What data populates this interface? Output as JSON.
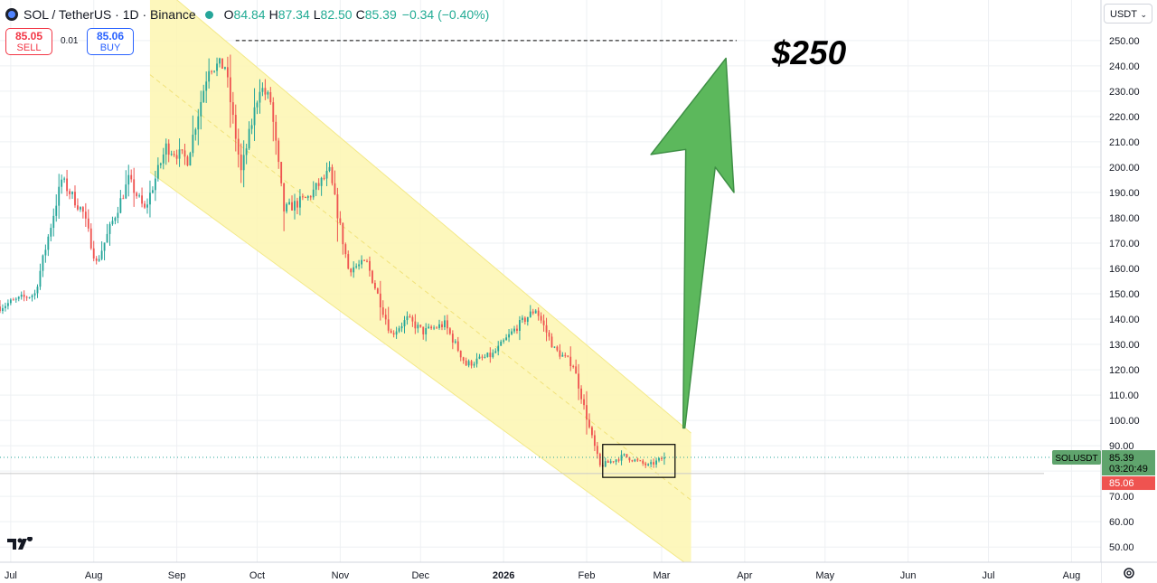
{
  "header": {
    "symbol": "SOL / TetherUS · 1D · Binance",
    "o_label": "O",
    "o_value": "84.84",
    "h_label": "H",
    "h_value": "87.34",
    "l_label": "L",
    "l_value": "82.50",
    "c_label": "C",
    "c_value": "85.39",
    "change": "−0.34 (−0.40%)"
  },
  "trade": {
    "sell_price": "85.05",
    "sell_label": "SELL",
    "spread": "0.01",
    "buy_price": "85.06",
    "buy_label": "BUY"
  },
  "currency": {
    "label": "USDT"
  },
  "annotation": {
    "target_text": "$250"
  },
  "price_tags": {
    "symbol": "SOLUSDT",
    "last_price": "85.39",
    "countdown": "03:20:49",
    "bid_price": "85.06"
  },
  "colors": {
    "up": "#26a69a",
    "down": "#ef5350",
    "channel_fill": "#fdf6b0",
    "arrow": "#5cb85c",
    "tag_green": "#5fa46d",
    "tag_red": "#ef5350"
  },
  "icons": [
    "tradingview-logo-icon",
    "settings-gear-icon",
    "chevron-down-icon"
  ],
  "chart_data": {
    "type": "candlestick",
    "title": "SOL / TetherUS · 1D · Binance",
    "y_axis_side": "right",
    "ylim": [
      44,
      266
    ],
    "yticks": [
      50,
      60,
      70,
      80,
      90,
      100,
      110,
      120,
      130,
      140,
      150,
      160,
      170,
      180,
      190,
      200,
      210,
      220,
      230,
      240,
      250
    ],
    "ytick_labels": [
      "50.00",
      "60.00",
      "70.00",
      "",
      "90.00",
      "100.00",
      "110.00",
      "120.00",
      "130.00",
      "140.00",
      "150.00",
      "160.00",
      "170.00",
      "180.00",
      "190.00",
      "200.00",
      "210.00",
      "220.00",
      "230.00",
      "240.00",
      "250.00"
    ],
    "x_range": [
      "2025-06-27",
      "2026-08-12"
    ],
    "xticks": [
      {
        "date": "2025-07-01",
        "label": "Jul"
      },
      {
        "date": "2025-08-01",
        "label": "Aug"
      },
      {
        "date": "2025-09-01",
        "label": "Sep"
      },
      {
        "date": "2025-10-01",
        "label": "Oct"
      },
      {
        "date": "2025-11-01",
        "label": "Nov"
      },
      {
        "date": "2025-12-01",
        "label": "Dec"
      },
      {
        "date": "2026-01-01",
        "label": "2026"
      },
      {
        "date": "2026-02-01",
        "label": "Feb"
      },
      {
        "date": "2026-03-01",
        "label": "Mar"
      },
      {
        "date": "2026-04-01",
        "label": "Apr"
      },
      {
        "date": "2026-05-01",
        "label": "May"
      },
      {
        "date": "2026-06-01",
        "label": "Jun"
      },
      {
        "date": "2026-07-01",
        "label": "Jul"
      },
      {
        "date": "2026-08-01",
        "label": "Aug"
      }
    ],
    "price_path": [
      {
        "date": "2025-06-27",
        "price": 145
      },
      {
        "date": "2025-07-10",
        "price": 150
      },
      {
        "date": "2025-07-20",
        "price": 195
      },
      {
        "date": "2025-07-28",
        "price": 182
      },
      {
        "date": "2025-08-02",
        "price": 162
      },
      {
        "date": "2025-08-14",
        "price": 195
      },
      {
        "date": "2025-08-20",
        "price": 183
      },
      {
        "date": "2025-08-28",
        "price": 208
      },
      {
        "date": "2025-09-05",
        "price": 203
      },
      {
        "date": "2025-09-13",
        "price": 240
      },
      {
        "date": "2025-09-19",
        "price": 240
      },
      {
        "date": "2025-09-25",
        "price": 198
      },
      {
        "date": "2025-10-02",
        "price": 232
      },
      {
        "date": "2025-10-06",
        "price": 226
      },
      {
        "date": "2025-10-11",
        "price": 183
      },
      {
        "date": "2025-10-20",
        "price": 188
      },
      {
        "date": "2025-10-28",
        "price": 198
      },
      {
        "date": "2025-11-04",
        "price": 160
      },
      {
        "date": "2025-11-11",
        "price": 162
      },
      {
        "date": "2025-11-20",
        "price": 134
      },
      {
        "date": "2025-11-26",
        "price": 140
      },
      {
        "date": "2025-12-02",
        "price": 135
      },
      {
        "date": "2025-12-10",
        "price": 138
      },
      {
        "date": "2025-12-18",
        "price": 122
      },
      {
        "date": "2025-12-28",
        "price": 126
      },
      {
        "date": "2026-01-06",
        "price": 137
      },
      {
        "date": "2026-01-13",
        "price": 144
      },
      {
        "date": "2026-01-20",
        "price": 128
      },
      {
        "date": "2026-01-27",
        "price": 122
      },
      {
        "date": "2026-02-02",
        "price": 97
      },
      {
        "date": "2026-02-06",
        "price": 82
      },
      {
        "date": "2026-02-15",
        "price": 86
      },
      {
        "date": "2026-02-24",
        "price": 82
      },
      {
        "date": "2026-03-02",
        "price": 85.39
      }
    ],
    "last_candle": {
      "open": 84.84,
      "high": 87.34,
      "low": 82.5,
      "close": 85.39
    },
    "channel": {
      "upper": [
        {
          "date": "2025-08-22",
          "price": 275
        },
        {
          "date": "2026-03-12",
          "price": 95
        }
      ],
      "lower": [
        {
          "date": "2025-08-22",
          "price": 198
        },
        {
          "date": "2026-03-12",
          "price": 42
        }
      ]
    },
    "target_line": {
      "price": 250,
      "from": "2025-09-23",
      "to": "2026-03-29"
    },
    "consolidation_box": {
      "from": "2026-02-07",
      "to": "2026-03-06",
      "low": 77.5,
      "high": 90.5
    },
    "current_price_line": 85.39,
    "bid_line": 79
  }
}
